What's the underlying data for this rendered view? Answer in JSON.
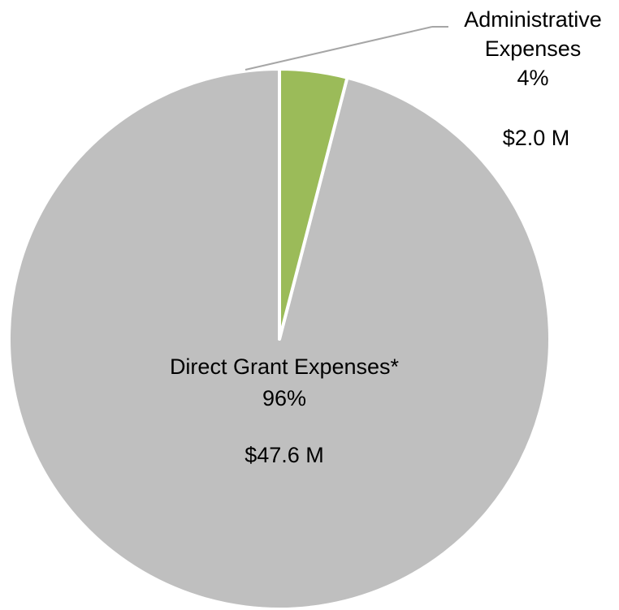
{
  "chart_data": {
    "type": "pie",
    "start_angle_deg": 0,
    "direction": "counterclockwise",
    "slices": [
      {
        "name": "Direct Grant Expenses*",
        "percent_label": "96%",
        "amount_label": "$47.6 M",
        "value": 47.6,
        "percent": 96,
        "color": "#bfbfbf"
      },
      {
        "name": "Administrative Expenses",
        "name_lines": [
          "Administrative",
          "Expenses"
        ],
        "percent_label": "4%",
        "amount_label": "$2.0 M",
        "value": 2.0,
        "percent": 4,
        "color": "#9bbb59"
      }
    ],
    "slice_border_color": "#ffffff",
    "leader_line_color": "#a6a6a6"
  }
}
